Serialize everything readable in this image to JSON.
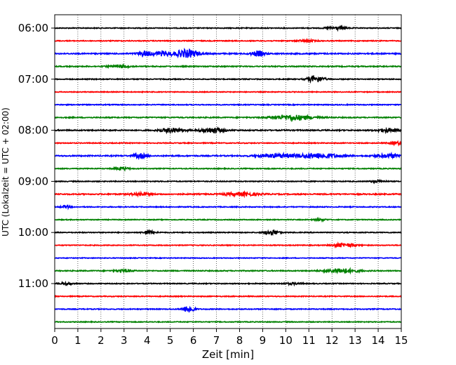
{
  "chart_data": {
    "type": "line",
    "title": "",
    "xlabel": "Zeit  [min]",
    "ylabel": "UTC (Lokalzeit = UTC + 02:00)",
    "xlim": [
      0,
      15
    ],
    "x_ticks": [
      "0",
      "1",
      "2",
      "3",
      "4",
      "5",
      "6",
      "7",
      "8",
      "9",
      "10",
      "11",
      "12",
      "13",
      "14",
      "15"
    ],
    "y_ticks": [
      "06:00",
      "07:00",
      "08:00",
      "09:00",
      "10:00",
      "11:00"
    ],
    "y_tick_trace_index": [
      0,
      4,
      8,
      12,
      16,
      20
    ],
    "grid": "vertical dotted",
    "trace_interval_min": 15,
    "trace_colors": [
      "#000000",
      "#ff0000",
      "#0000ff",
      "#008000"
    ],
    "traces": [
      {
        "start": "06:00",
        "noise": 0.6,
        "events": [
          {
            "t": 12.2,
            "amp": 2.2,
            "width": 0.4
          }
        ]
      },
      {
        "start": "06:15",
        "noise": 0.6,
        "events": [
          {
            "t": 10.9,
            "amp": 1.4,
            "width": 0.4
          }
        ]
      },
      {
        "start": "06:30",
        "noise": 0.8,
        "events": [
          {
            "t": 3.9,
            "amp": 3.5,
            "width": 0.3
          },
          {
            "t": 4.7,
            "amp": 3.0,
            "width": 0.4
          },
          {
            "t": 5.7,
            "amp": 5.5,
            "width": 0.5
          },
          {
            "t": 8.8,
            "amp": 3.5,
            "width": 0.3
          }
        ]
      },
      {
        "start": "06:45",
        "noise": 0.7,
        "events": [
          {
            "t": 2.8,
            "amp": 2.0,
            "width": 0.4
          }
        ]
      },
      {
        "start": "07:00",
        "noise": 0.6,
        "events": [
          {
            "t": 11.3,
            "amp": 4.5,
            "width": 0.35
          }
        ]
      },
      {
        "start": "07:15",
        "noise": 0.55,
        "events": []
      },
      {
        "start": "07:30",
        "noise": 0.6,
        "events": []
      },
      {
        "start": "07:45",
        "noise": 0.7,
        "events": [
          {
            "t": 10.3,
            "amp": 3.5,
            "width": 0.9
          }
        ]
      },
      {
        "start": "08:00",
        "noise": 0.8,
        "events": [
          {
            "t": 5.1,
            "amp": 3.0,
            "width": 0.5
          },
          {
            "t": 6.8,
            "amp": 3.5,
            "width": 0.5
          },
          {
            "t": 14.4,
            "amp": 2.5,
            "width": 0.4
          }
        ]
      },
      {
        "start": "08:15",
        "noise": 0.6,
        "events": [
          {
            "t": 14.8,
            "amp": 2.0,
            "width": 0.3
          }
        ]
      },
      {
        "start": "08:30",
        "noise": 0.8,
        "events": [
          {
            "t": 3.7,
            "amp": 3.0,
            "width": 0.3
          },
          {
            "t": 9.6,
            "amp": 2.5,
            "width": 0.8
          },
          {
            "t": 11.4,
            "amp": 3.5,
            "width": 0.9
          },
          {
            "t": 14.5,
            "amp": 2.5,
            "width": 0.6
          }
        ]
      },
      {
        "start": "08:45",
        "noise": 0.6,
        "events": [
          {
            "t": 2.9,
            "amp": 2.0,
            "width": 0.3
          }
        ]
      },
      {
        "start": "09:00",
        "noise": 0.6,
        "events": [
          {
            "t": 14.0,
            "amp": 1.5,
            "width": 0.3
          }
        ]
      },
      {
        "start": "09:15",
        "noise": 0.8,
        "events": [
          {
            "t": 3.7,
            "amp": 2.0,
            "width": 0.4
          },
          {
            "t": 8.1,
            "amp": 2.5,
            "width": 0.7
          }
        ]
      },
      {
        "start": "09:30",
        "noise": 0.6,
        "events": [
          {
            "t": 0.5,
            "amp": 2.0,
            "width": 0.2
          }
        ]
      },
      {
        "start": "09:45",
        "noise": 0.55,
        "events": [
          {
            "t": 11.5,
            "amp": 1.2,
            "width": 0.3
          }
        ]
      },
      {
        "start": "10:00",
        "noise": 0.6,
        "events": [
          {
            "t": 4.1,
            "amp": 2.0,
            "width": 0.3
          },
          {
            "t": 9.4,
            "amp": 3.5,
            "width": 0.3
          }
        ]
      },
      {
        "start": "10:15",
        "noise": 0.55,
        "events": [
          {
            "t": 12.5,
            "amp": 2.5,
            "width": 0.5
          }
        ]
      },
      {
        "start": "10:30",
        "noise": 0.5,
        "events": []
      },
      {
        "start": "10:45",
        "noise": 0.65,
        "events": [
          {
            "t": 3.0,
            "amp": 1.5,
            "width": 0.4
          },
          {
            "t": 12.4,
            "amp": 3.0,
            "width": 0.7
          }
        ]
      },
      {
        "start": "11:00",
        "noise": 0.6,
        "events": [
          {
            "t": 0.5,
            "amp": 1.5,
            "width": 0.3
          },
          {
            "t": 10.3,
            "amp": 1.2,
            "width": 0.4
          }
        ]
      },
      {
        "start": "11:15",
        "noise": 0.6,
        "events": []
      },
      {
        "start": "11:30",
        "noise": 0.6,
        "events": [
          {
            "t": 5.8,
            "amp": 5.0,
            "width": 0.25
          }
        ]
      },
      {
        "start": "11:45",
        "noise": 0.55,
        "events": []
      }
    ]
  }
}
